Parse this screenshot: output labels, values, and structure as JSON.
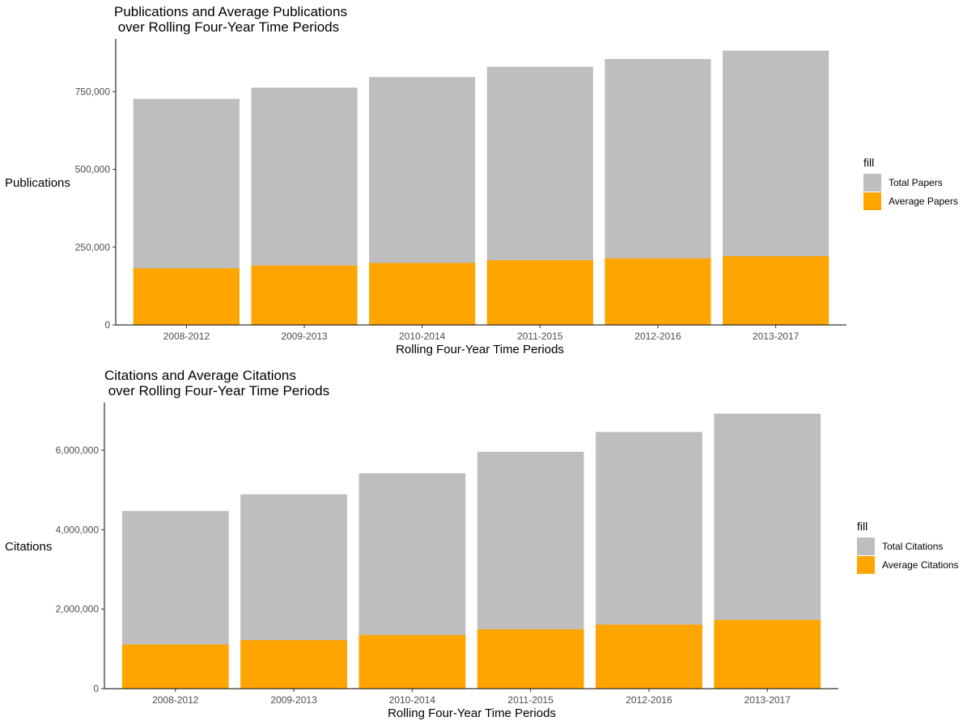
{
  "colors": {
    "total": "#bebebe",
    "average": "#ffa500",
    "axis": "#000000",
    "tick_text": "#4d4d4d"
  },
  "chart_data": [
    {
      "type": "bar",
      "stacking": "overlay",
      "title": "Publications and Average Publications\n over Rolling Four-Year Time Periods",
      "xlabel": "Rolling Four-Year Time Periods",
      "ylabel": "Publications",
      "categories": [
        "2008-2012",
        "2009-2013",
        "2010-2014",
        "2011-2015",
        "2012-2016",
        "2013-2017"
      ],
      "ylim": [
        0,
        920000
      ],
      "yticks": [
        0,
        250000,
        500000,
        750000
      ],
      "yticklabels": [
        "0",
        "250,000",
        "500,000",
        "750,000"
      ],
      "grid": false,
      "legend_title": "fill",
      "legend_position": "right",
      "series": [
        {
          "name": "Total Papers",
          "color_key": "total",
          "values": [
            727000,
            763000,
            797000,
            830000,
            855000,
            882000
          ]
        },
        {
          "name": "Average Papers",
          "color_key": "average",
          "values": [
            182000,
            191000,
            199000,
            208000,
            214000,
            221000
          ]
        }
      ]
    },
    {
      "type": "bar",
      "stacking": "overlay",
      "title": "Citations and Average Citations\n over Rolling Four-Year Time Periods",
      "xlabel": "Rolling Four-Year Time Periods",
      "ylabel": "Citations",
      "categories": [
        "2008-2012",
        "2009-2013",
        "2010-2014",
        "2011-2015",
        "2012-2016",
        "2013-2017"
      ],
      "ylim": [
        0,
        7200000
      ],
      "yticks": [
        0,
        2000000,
        4000000,
        6000000
      ],
      "yticklabels": [
        "0",
        "2,000,000",
        "4,000,000",
        "6,000,000"
      ],
      "grid": false,
      "legend_title": "fill",
      "legend_position": "right",
      "series": [
        {
          "name": "Total Citations",
          "color_key": "total",
          "values": [
            4470000,
            4890000,
            5420000,
            5960000,
            6460000,
            6920000
          ]
        },
        {
          "name": "Average Citations",
          "color_key": "average",
          "values": [
            1110000,
            1220000,
            1350000,
            1490000,
            1610000,
            1730000
          ]
        }
      ]
    }
  ]
}
